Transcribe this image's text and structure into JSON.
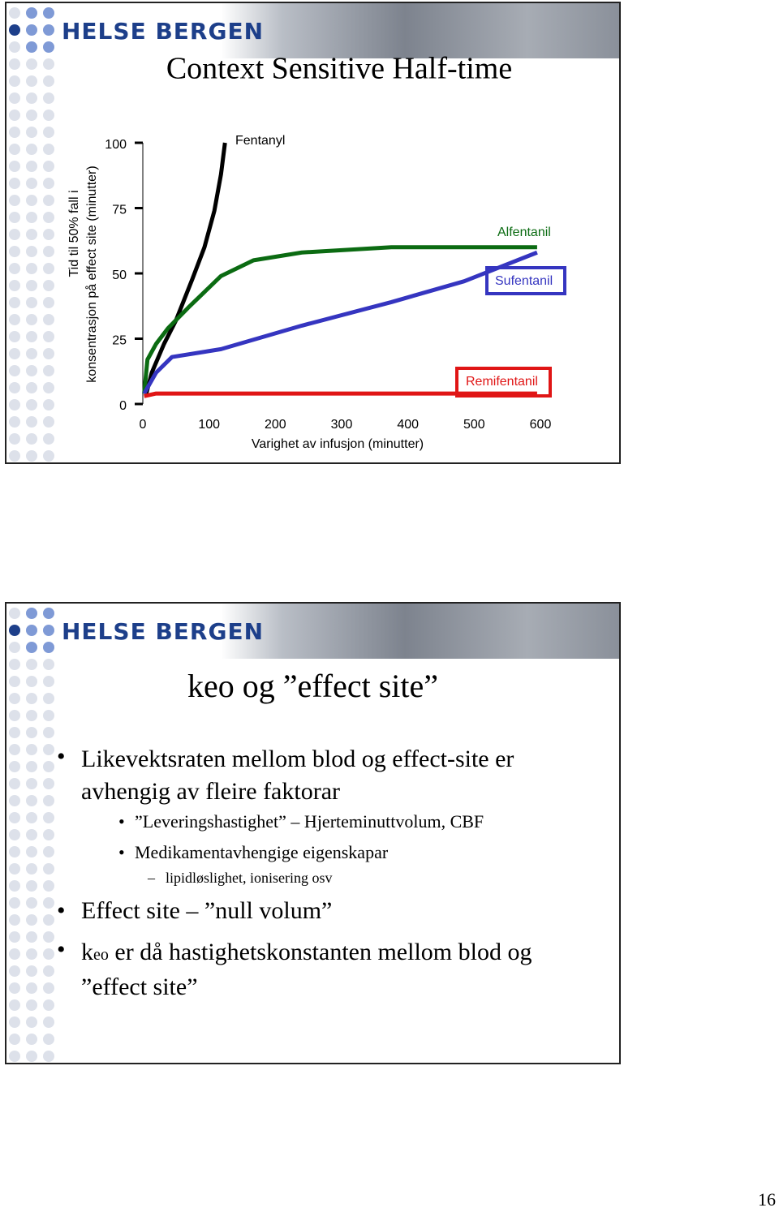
{
  "header": {
    "logo": "HELSE BERGEN"
  },
  "chart_data": {
    "type": "line",
    "title": "Context Sensitive Half-time",
    "y_label": [
      "Tid til 50% fall i",
      "konsentrasjon på effect site (minutter)"
    ],
    "x_label": "Varighet av infusjon (minutter)",
    "xlim": [
      0,
      600
    ],
    "ylim": [
      0,
      100
    ],
    "xticks": [
      0,
      100,
      200,
      300,
      400,
      500,
      600
    ],
    "yticks": [
      0,
      25,
      50,
      75,
      100
    ],
    "series": [
      {
        "name": "Fentanyl",
        "color": "#000000",
        "x": [
          5,
          13.5,
          32,
          50,
          75,
          93,
          108,
          118,
          124
        ],
        "values": [
          3.7,
          12,
          23,
          32,
          48,
          60,
          74,
          88,
          100
        ]
      },
      {
        "name": "Alfentanil",
        "color": "#0b6b12",
        "x": [
          2,
          7,
          20,
          38,
          69,
          118,
          167,
          240,
          375,
          497,
          595
        ],
        "values": [
          4,
          17,
          23,
          29,
          37,
          49,
          55,
          58,
          60,
          60,
          60
        ]
      },
      {
        "name": "Sufentanil",
        "color": "#3535c0",
        "x": [
          2,
          20,
          44,
          118,
          240,
          375,
          485,
          595
        ],
        "values": [
          4,
          12,
          18,
          21,
          30,
          39,
          47,
          58
        ]
      },
      {
        "name": "Remifentanil",
        "color": "#e01515",
        "x": [
          2,
          20,
          154,
          595
        ],
        "values": [
          3,
          4,
          4,
          4
        ]
      }
    ]
  },
  "slide2": {
    "title": "keo og ”effect site”",
    "bullets": [
      "Likevektsraten mellom blod og effect-site er avhengig av fleire faktorar",
      "”Leveringshastighet” – Hjerteminuttvolum, CBF",
      "Medikamentavhengige eigenskapar",
      "lipidløslighet, ionisering osv",
      "Effect site – ”null volum”",
      [
        "k",
        "eo",
        " er då hastighetskonstanten mellom blod og ”effect site”"
      ]
    ]
  },
  "page_number": "16"
}
